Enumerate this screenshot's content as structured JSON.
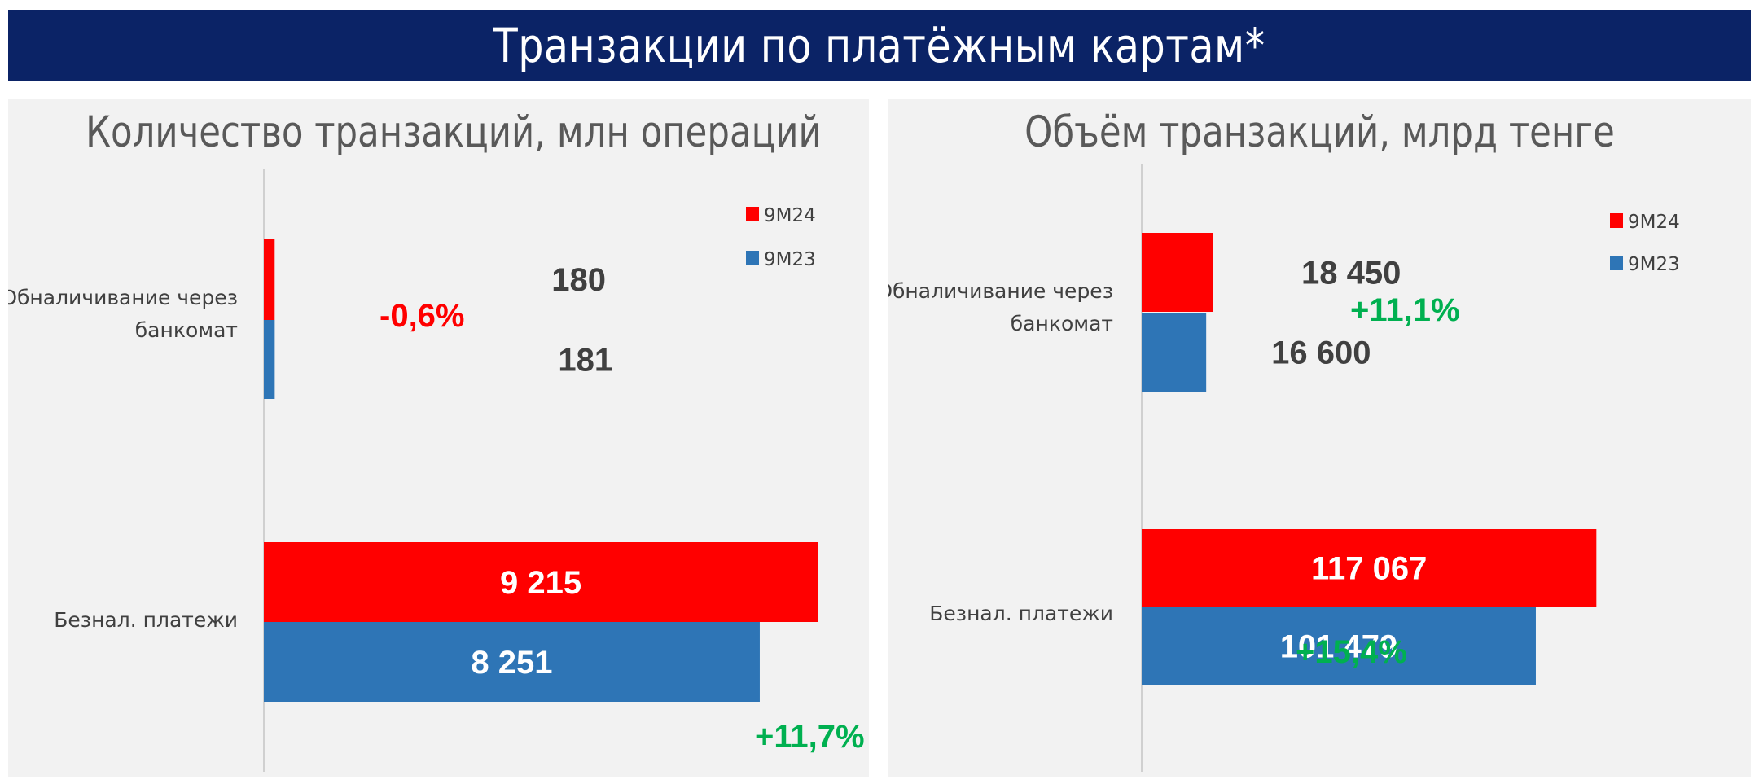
{
  "title": "Транзакции по платёжным картам*",
  "colors": {
    "banner": "#0b2366",
    "series_9m24": "#ff0000",
    "series_9m23": "#2e75b6",
    "positive": "#00b050",
    "negative": "#ff0000"
  },
  "chart_data": [
    {
      "type": "bar",
      "orientation": "horizontal",
      "title": "Количество транзакций, млн операций",
      "categories": [
        "Обналичивание через банкомат",
        "Безнал. платежи"
      ],
      "category_lines": [
        [
          "Обналичивание через",
          "банкомат"
        ],
        [
          "Безнал. платежи"
        ]
      ],
      "series": [
        {
          "name": "9M24",
          "values": [
            180,
            9215
          ],
          "labels": [
            "180",
            "9 215"
          ]
        },
        {
          "name": "9M23",
          "values": [
            181,
            8251
          ],
          "labels": [
            "181",
            "8 251"
          ]
        }
      ],
      "changes": [
        {
          "text": "-0,6%",
          "sign": "negative"
        },
        {
          "text": "+11,7%",
          "sign": "positive"
        }
      ],
      "legend_position": "top-right",
      "grid": false
    },
    {
      "type": "bar",
      "orientation": "horizontal",
      "title": "Объём транзакций, млрд тенге",
      "categories": [
        "Обналичивание через банкомат",
        "Безнал. платежи"
      ],
      "category_lines": [
        [
          "Обналичивание через",
          "банкомат"
        ],
        [
          "Безнал. платежи"
        ]
      ],
      "series": [
        {
          "name": "9M24",
          "values": [
            18450,
            117067
          ],
          "labels": [
            "18 450",
            "117 067"
          ]
        },
        {
          "name": "9M23",
          "values": [
            16600,
            101479
          ],
          "labels": [
            "16 600",
            "101 479"
          ]
        }
      ],
      "changes": [
        {
          "text": "+11,1%",
          "sign": "positive"
        },
        {
          "text": "+15,4%",
          "sign": "positive"
        }
      ],
      "legend_position": "top-right",
      "grid": false
    }
  ]
}
